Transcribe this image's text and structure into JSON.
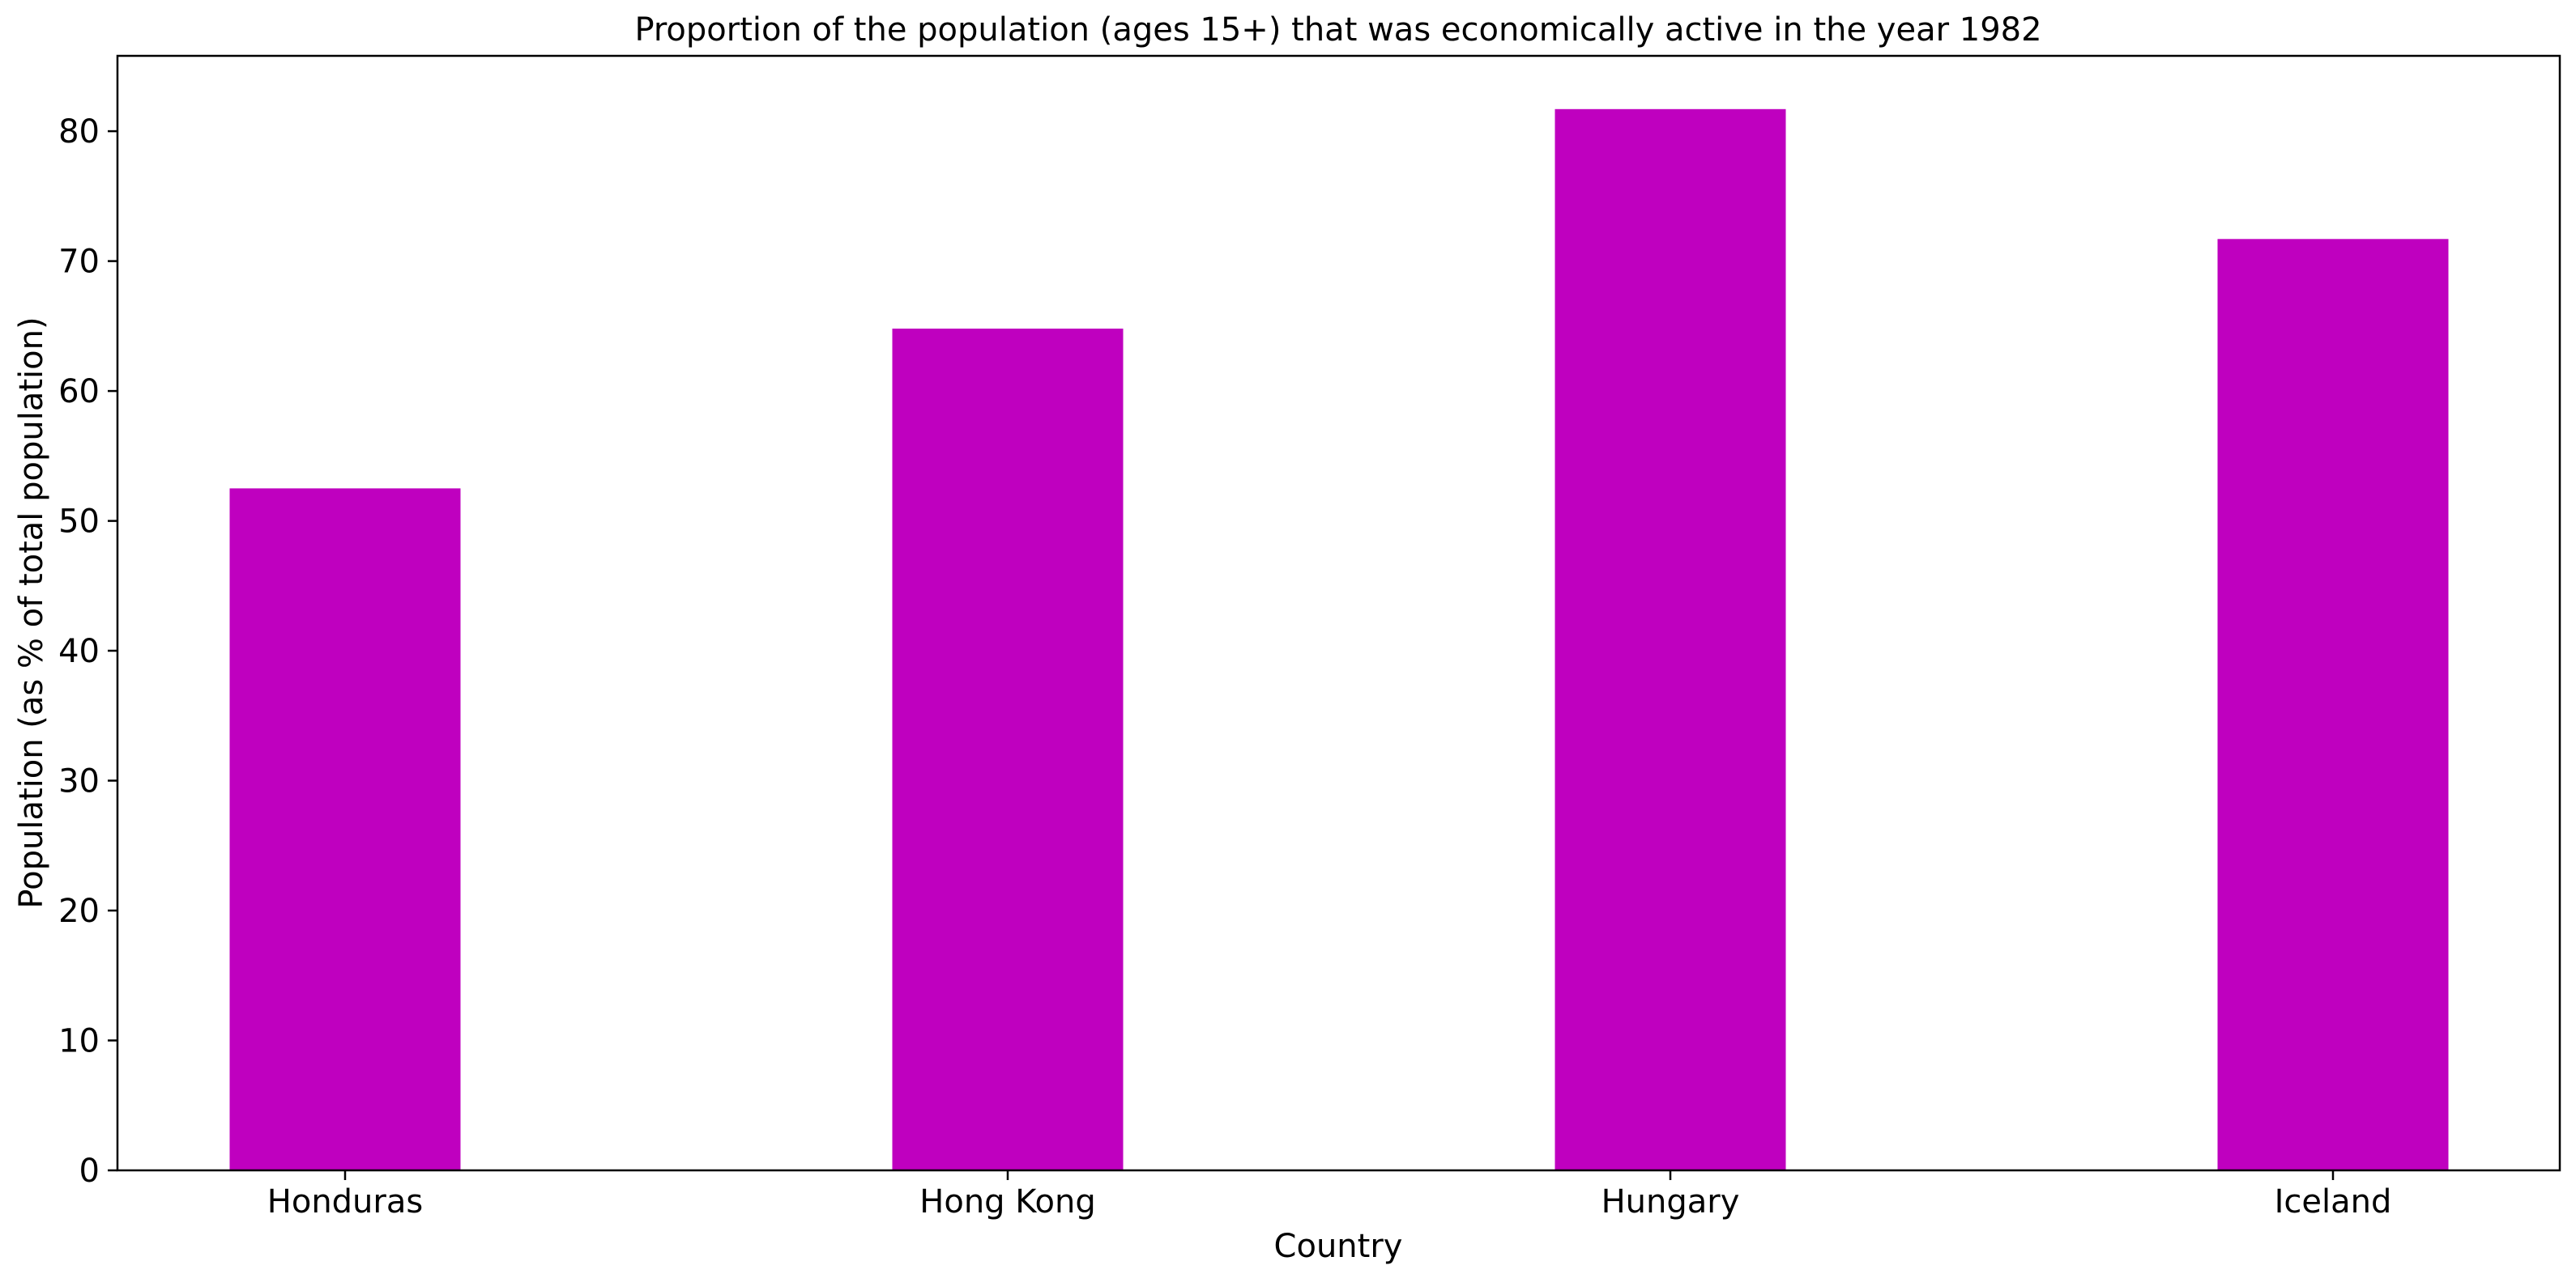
{
  "chart_data": {
    "type": "bar",
    "title": "Proportion of the population (ages 15+) that was economically active in the year 1982",
    "xlabel": "Country",
    "ylabel": "Population (as % of total population)",
    "categories": [
      "Honduras",
      "Hong Kong",
      "Hungary",
      "Iceland"
    ],
    "series": [
      {
        "values": [
          52.5,
          64.8,
          81.7,
          71.7
        ],
        "color": "#bf00bf"
      }
    ],
    "ylim": [
      0,
      85.8
    ],
    "yticks": [
      0,
      10,
      20,
      30,
      40,
      50,
      60,
      70,
      80
    ],
    "grid": false,
    "legend": "none"
  }
}
